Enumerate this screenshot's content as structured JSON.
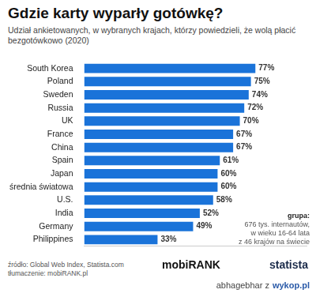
{
  "chart_data": {
    "type": "bar",
    "title": "Gdzie karty wyparły gotówkę?",
    "subtitle": "Udział ankietowanych, w wybranych krajach, którzy powiedzieli, że wolą płacić bezgotówkowo (2020)",
    "categories": [
      "South Korea",
      "Poland",
      "Sweden",
      "Russia",
      "UK",
      "France",
      "China",
      "Spain",
      "Japan",
      "średnia światowa",
      "U.S.",
      "India",
      "Germany",
      "Philippines"
    ],
    "values": [
      77,
      75,
      74,
      72,
      70,
      67,
      67,
      61,
      60,
      60,
      58,
      52,
      49,
      33
    ],
    "value_labels": [
      "77%",
      "75%",
      "74%",
      "72%",
      "70%",
      "67%",
      "67%",
      "61%",
      "60%",
      "60%",
      "58%",
      "52%",
      "49%",
      "33%"
    ],
    "color": "#1a73d9",
    "orientation": "horizontal",
    "xlim": [
      0,
      100
    ],
    "grid": false,
    "data_labels": true,
    "tick_labels": "y",
    "annotations": {
      "group_title": "grupa:",
      "group_note": [
        "676 tys. internautów,",
        "w wieku 16-64 lata",
        "z 46 krajów na świecie"
      ],
      "source": [
        "źródło: Global Web Index, Statista.com",
        "tłumaczenie: mobiRANK.pl"
      ],
      "brands": [
        "mobiRANK",
        "statista"
      ],
      "watermark": [
        "abhagebhar z",
        "wykop.pl"
      ]
    }
  }
}
